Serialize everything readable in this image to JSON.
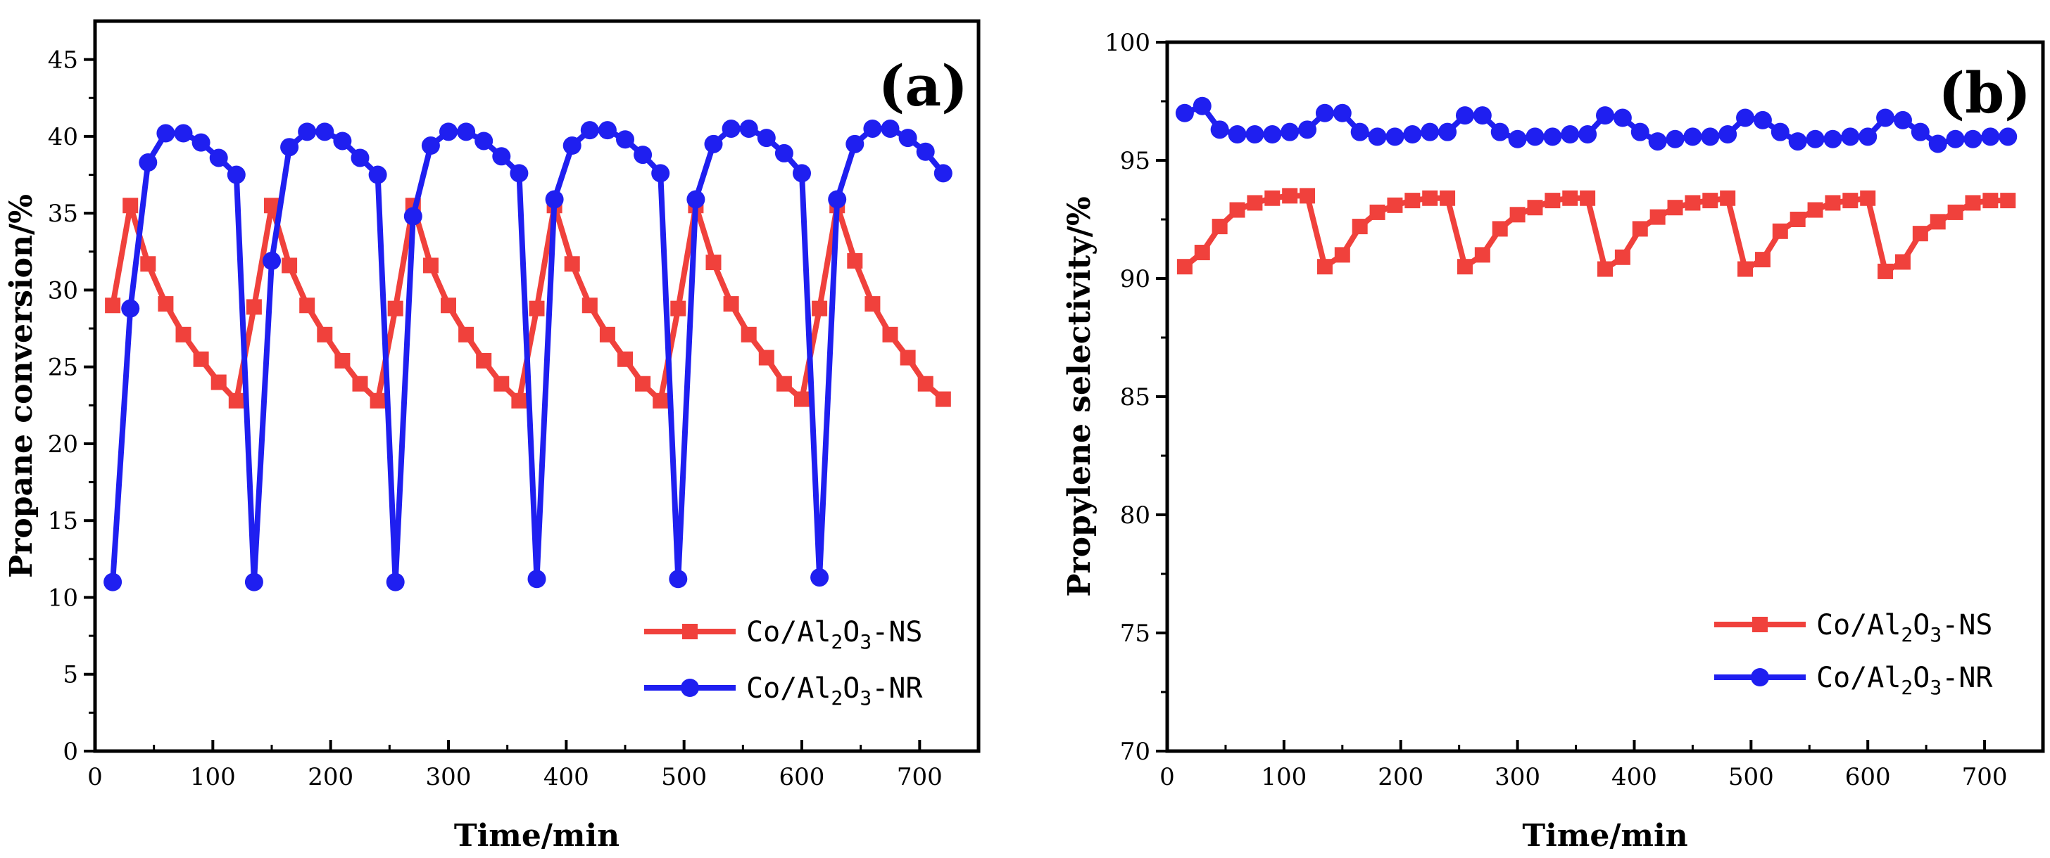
{
  "chart_data": [
    {
      "type": "line",
      "panel_label": "(a)",
      "title": "",
      "xlabel": "Time/min",
      "ylabel": "Propane conversion/%",
      "xlim": [
        0,
        750
      ],
      "ylim": [
        0,
        47.5
      ],
      "xticks": [
        0,
        100,
        200,
        300,
        400,
        500,
        600,
        700
      ],
      "yticks": [
        0,
        5,
        10,
        15,
        20,
        25,
        30,
        35,
        40,
        45
      ],
      "legend_position": "bottom-right",
      "series": [
        {
          "name": "Co/Al2O3-NS",
          "legend": {
            "pre": "Co/Al",
            "sub1": "2",
            "mid": "O",
            "sub2": "3",
            "post": "-NS"
          },
          "color": "#f0413c",
          "marker": "square",
          "x": [
            15,
            30,
            45,
            60,
            75,
            90,
            105,
            120,
            135,
            150,
            165,
            180,
            195,
            210,
            225,
            240,
            255,
            270,
            285,
            300,
            315,
            330,
            345,
            360,
            375,
            390,
            405,
            420,
            435,
            450,
            465,
            480,
            495,
            510,
            525,
            540,
            555,
            570,
            585,
            600,
            615,
            630,
            645,
            660,
            675,
            690,
            705,
            720
          ],
          "y": [
            29.0,
            35.5,
            31.7,
            29.1,
            27.1,
            25.5,
            24.0,
            22.8,
            28.9,
            35.5,
            31.6,
            29.0,
            27.1,
            25.4,
            23.9,
            22.8,
            28.8,
            35.5,
            31.6,
            29.0,
            27.1,
            25.4,
            23.9,
            22.8,
            28.8,
            35.5,
            31.7,
            29.0,
            27.1,
            25.5,
            23.9,
            22.8,
            28.8,
            35.5,
            31.8,
            29.1,
            27.1,
            25.6,
            23.9,
            22.9,
            28.8,
            35.5,
            31.9,
            29.1,
            27.1,
            25.6,
            23.9,
            22.9
          ]
        },
        {
          "name": "Co/Al2O3-NR",
          "legend": {
            "pre": "Co/Al",
            "sub1": "2",
            "mid": "O",
            "sub2": "3",
            "post": "-NR"
          },
          "color": "#1f1ff0",
          "marker": "circle",
          "x": [
            15,
            30,
            45,
            60,
            75,
            90,
            105,
            120,
            135,
            150,
            165,
            180,
            195,
            210,
            225,
            240,
            255,
            270,
            285,
            300,
            315,
            330,
            345,
            360,
            375,
            390,
            405,
            420,
            435,
            450,
            465,
            480,
            495,
            510,
            525,
            540,
            555,
            570,
            585,
            600,
            615,
            630,
            645,
            660,
            675,
            690,
            705,
            720
          ],
          "y": [
            11.0,
            28.8,
            38.3,
            40.2,
            40.2,
            39.6,
            38.6,
            37.5,
            11.0,
            31.9,
            39.3,
            40.3,
            40.3,
            39.7,
            38.6,
            37.5,
            11.0,
            34.8,
            39.4,
            40.3,
            40.3,
            39.7,
            38.7,
            37.6,
            11.2,
            35.9,
            39.4,
            40.4,
            40.4,
            39.8,
            38.8,
            37.6,
            11.2,
            35.9,
            39.5,
            40.5,
            40.5,
            39.9,
            38.9,
            37.6,
            11.3,
            35.9,
            39.5,
            40.5,
            40.5,
            39.9,
            39.0,
            37.6
          ]
        }
      ]
    },
    {
      "type": "line",
      "panel_label": "(b)",
      "title": "",
      "xlabel": "Time/min",
      "ylabel": "Propylene selectivity/%",
      "xlim": [
        0,
        750
      ],
      "ylim": [
        70,
        100
      ],
      "xticks": [
        0,
        100,
        200,
        300,
        400,
        500,
        600,
        700
      ],
      "yticks": [
        70,
        75,
        80,
        85,
        90,
        95,
        100
      ],
      "legend_position": "bottom-right",
      "series": [
        {
          "name": "Co/Al2O3-NS",
          "legend": {
            "pre": "Co/Al",
            "sub1": "2",
            "mid": "O",
            "sub2": "3",
            "post": "-NS"
          },
          "color": "#f0413c",
          "marker": "square",
          "x": [
            15,
            30,
            45,
            60,
            75,
            90,
            105,
            120,
            135,
            150,
            165,
            180,
            195,
            210,
            225,
            240,
            255,
            270,
            285,
            300,
            315,
            330,
            345,
            360,
            375,
            390,
            405,
            420,
            435,
            450,
            465,
            480,
            495,
            510,
            525,
            540,
            555,
            570,
            585,
            600,
            615,
            630,
            645,
            660,
            675,
            690,
            705,
            720
          ],
          "y": [
            90.5,
            91.1,
            92.2,
            92.9,
            93.2,
            93.4,
            93.5,
            93.5,
            90.5,
            91.0,
            92.2,
            92.8,
            93.1,
            93.3,
            93.4,
            93.4,
            90.5,
            91.0,
            92.1,
            92.7,
            93.0,
            93.3,
            93.4,
            93.4,
            90.4,
            90.9,
            92.1,
            92.6,
            93.0,
            93.2,
            93.3,
            93.4,
            90.4,
            90.8,
            92.0,
            92.5,
            92.9,
            93.2,
            93.3,
            93.4,
            90.3,
            90.7,
            91.9,
            92.4,
            92.8,
            93.2,
            93.3,
            93.3
          ]
        },
        {
          "name": "Co/Al2O3-NR",
          "legend": {
            "pre": "Co/Al",
            "sub1": "2",
            "mid": "O",
            "sub2": "3",
            "post": "-NR"
          },
          "color": "#1f1ff0",
          "marker": "circle",
          "x": [
            15,
            30,
            45,
            60,
            75,
            90,
            105,
            120,
            135,
            150,
            165,
            180,
            195,
            210,
            225,
            240,
            255,
            270,
            285,
            300,
            315,
            330,
            345,
            360,
            375,
            390,
            405,
            420,
            435,
            450,
            465,
            480,
            495,
            510,
            525,
            540,
            555,
            570,
            585,
            600,
            615,
            630,
            645,
            660,
            675,
            690,
            705,
            720
          ],
          "y": [
            97.0,
            97.3,
            96.3,
            96.1,
            96.1,
            96.1,
            96.2,
            96.3,
            97.0,
            97.0,
            96.2,
            96.0,
            96.0,
            96.1,
            96.2,
            96.2,
            96.9,
            96.9,
            96.2,
            95.9,
            96.0,
            96.0,
            96.1,
            96.1,
            96.9,
            96.8,
            96.2,
            95.8,
            95.9,
            96.0,
            96.0,
            96.1,
            96.8,
            96.7,
            96.2,
            95.8,
            95.9,
            95.9,
            96.0,
            96.0,
            96.8,
            96.7,
            96.2,
            95.7,
            95.9,
            95.9,
            96.0,
            96.0
          ]
        }
      ]
    }
  ]
}
